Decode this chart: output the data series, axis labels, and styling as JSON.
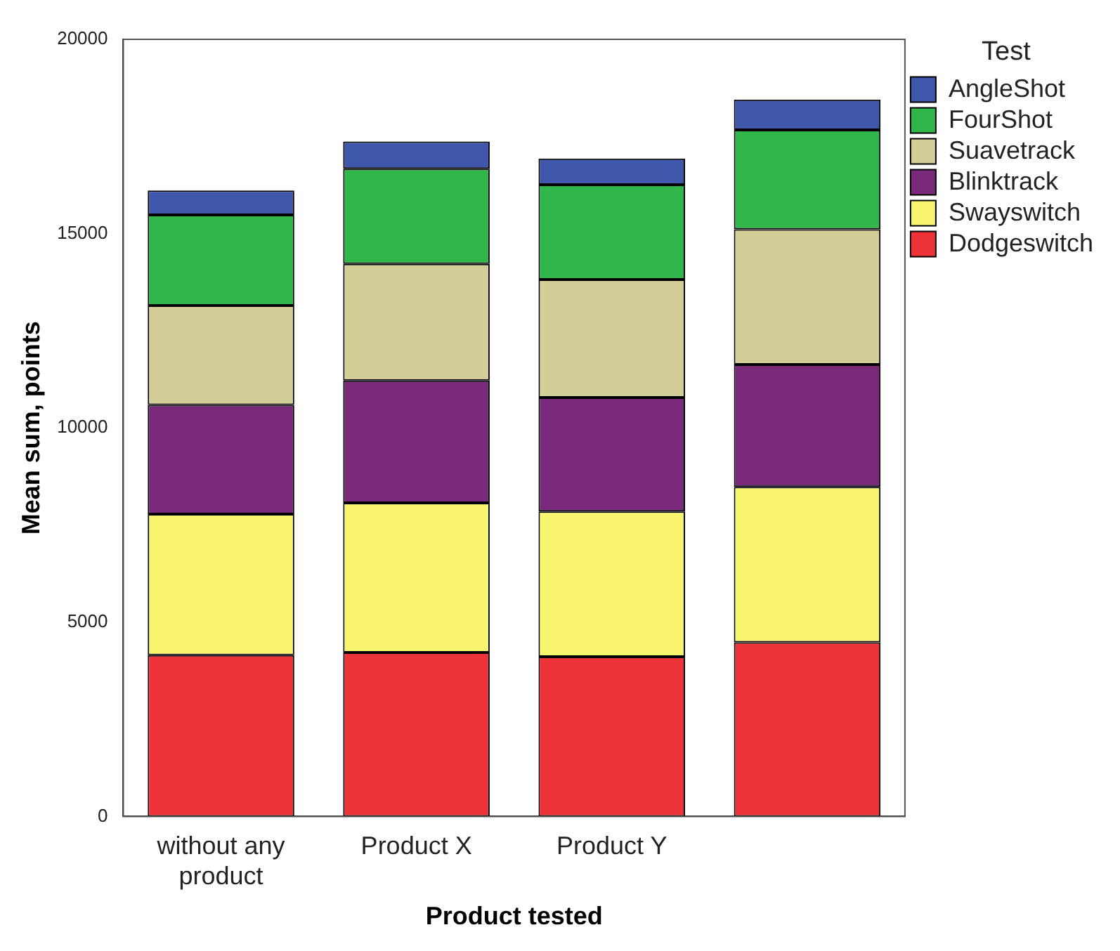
{
  "chart_data": {
    "type": "bar",
    "stacked": true,
    "xlabel": "Product tested",
    "ylabel": "Mean sum, points",
    "legend_title": "Test",
    "legend": "right",
    "grid": false,
    "categories": [
      "without any product",
      "Product X",
      "Product Y",
      null
    ],
    "ylim": [
      0,
      20000
    ],
    "yticks": [
      0,
      5000,
      10000,
      15000,
      20000
    ],
    "series": [
      {
        "name": "Dodgeswitch",
        "color": "#ee3338",
        "values": [
          4150,
          4220,
          4110,
          4480
        ]
      },
      {
        "name": "Swayswitch",
        "color": "#f8f46e",
        "values": [
          3630,
          3850,
          3740,
          4000
        ]
      },
      {
        "name": "Blinktrack",
        "color": "#7a2a7a",
        "values": [
          2810,
          3150,
          2930,
          3150
        ]
      },
      {
        "name": "Suavetrack",
        "color": "#d3cd97",
        "values": [
          2560,
          3000,
          3040,
          3480
        ]
      },
      {
        "name": "FourShot",
        "color": "#30b64a",
        "values": [
          2330,
          2450,
          2440,
          2560
        ]
      },
      {
        "name": "AngleShot",
        "color": "#3e57ab",
        "values": [
          630,
          700,
          670,
          780
        ]
      }
    ]
  }
}
